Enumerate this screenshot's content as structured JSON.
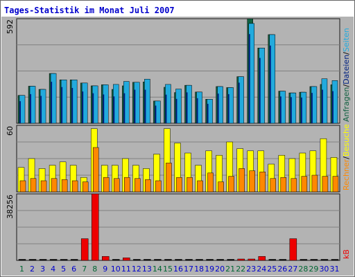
{
  "chart_data": {
    "type": "bar",
    "title": "Tages-Statistik im Monat Juli 2007",
    "categories": [
      "1",
      "2",
      "3",
      "4",
      "5",
      "6",
      "7",
      "8",
      "9",
      "10",
      "11",
      "12",
      "13",
      "14",
      "15",
      "16",
      "17",
      "18",
      "19",
      "20",
      "21",
      "22",
      "23",
      "24",
      "25",
      "26",
      "27",
      "28",
      "29",
      "30",
      "31"
    ],
    "weekend_days": [
      "1",
      "7",
      "8",
      "14",
      "15",
      "21",
      "22",
      "28",
      "29"
    ],
    "colors": {
      "background": "#b3b3b3",
      "frame": "#1a1a1a",
      "grid": "#808080",
      "title": "#0000cc",
      "day_label": "#0000cc",
      "weekend_label": "#006633",
      "anfragen": "#106040",
      "dateien": "#002080",
      "seiten": "#22aadd",
      "besuche": "#ffff00",
      "rechner": "#ff8800",
      "kb": "#ee0000"
    },
    "panels": [
      {
        "name": "requests",
        "ymax_label": "592",
        "ymax": 592,
        "legend": [
          {
            "label": "Anfragen",
            "color": "#106040"
          },
          {
            "label": "/",
            "color": "#000000"
          },
          {
            "label": "Dateien",
            "color": "#002080"
          },
          {
            "label": "/",
            "color": "#000000"
          },
          {
            "label": "Seiten",
            "color": "#22aadd"
          }
        ],
        "series": [
          {
            "name": "Anfragen",
            "values": [
              158,
              210,
              192,
              282,
              246,
              246,
              228,
              212,
              218,
              192,
              212,
              232,
              234,
              126,
              204,
              174,
              215,
              177,
              136,
              208,
              202,
              264,
              592,
              426,
              502,
              182,
              172,
              176,
              208,
              220,
              218
            ]
          },
          {
            "name": "Dateien",
            "values": [
              125,
              165,
              155,
              235,
              205,
              200,
              180,
              170,
              163,
              152,
              170,
              190,
              190,
              100,
              162,
              138,
              175,
              142,
              110,
              168,
              165,
              230,
              505,
              370,
              440,
              152,
              148,
              146,
              172,
              190,
              182
            ]
          },
          {
            "name": "Seiten",
            "values": [
              158,
              210,
              192,
              282,
              246,
              246,
              228,
              212,
              218,
              220,
              237,
              232,
              250,
              126,
              220,
              194,
              215,
              177,
              136,
              208,
              202,
              264,
              565,
              426,
              502,
              182,
              172,
              176,
              208,
              252,
              242
            ]
          }
        ]
      },
      {
        "name": "visits",
        "ymax_label": "60",
        "ymax": 60,
        "legend": [
          {
            "label": "Rechner",
            "color": "#ff8800"
          },
          {
            "label": "/",
            "color": "#000000"
          },
          {
            "label": "Besuche",
            "color": "#ffff00"
          }
        ],
        "series": [
          {
            "name": "Besuche",
            "values": [
              22,
              30,
              21,
              24,
              27,
              24,
              13,
              57,
              24,
              24,
              30,
              24,
              21,
              34,
              57,
              44,
              35,
              24,
              37,
              33,
              45,
              39,
              37,
              37,
              25,
              33,
              30,
              35,
              37,
              48,
              31
            ]
          },
          {
            "name": "Rechner",
            "values": [
              10,
              12,
              10,
              12,
              11,
              10,
              9,
              40,
              13,
              12,
              13,
              12,
              11,
              10,
              26,
              13,
              13,
              10,
              17,
              9,
              14,
              21,
              19,
              18,
              12,
              13,
              12,
              14,
              15,
              14,
              14
            ]
          }
        ]
      },
      {
        "name": "traffic",
        "ymax_label": "38256",
        "ymax": 38256,
        "legend": [
          {
            "label": "kB",
            "color": "#ee0000"
          }
        ],
        "series": [
          {
            "name": "kB",
            "values": [
              0,
              0,
              0,
              0,
              0,
              0,
              12500,
              38256,
              2300,
              0,
              1500,
              0,
              0,
              0,
              0,
              0,
              0,
              0,
              0,
              0,
              0,
              800,
              800,
              2300,
              0,
              0,
              12500,
              0,
              0,
              0,
              0
            ]
          }
        ]
      }
    ]
  }
}
